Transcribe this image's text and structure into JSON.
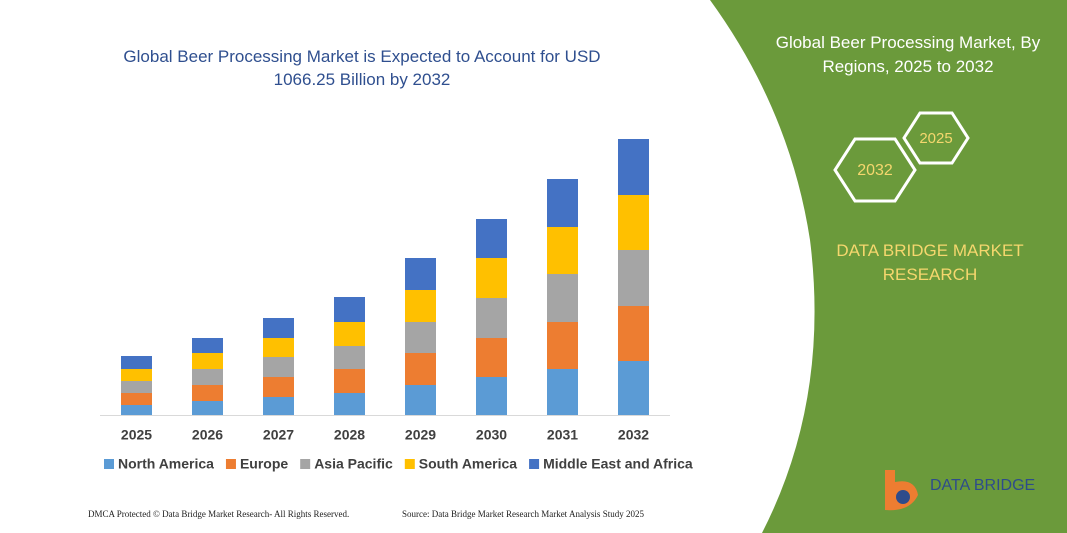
{
  "chart_data": {
    "type": "stacked_bar",
    "title": "Global Beer Processing Market is Expected to Account for USD 1066.25 Billion by 2032",
    "categories": [
      "2025",
      "2026",
      "2027",
      "2028",
      "2029",
      "2030",
      "2031",
      "2032"
    ],
    "series": [
      {
        "name": "North America",
        "color": "#5b9bd5",
        "values": [
          10,
          14,
          18,
          22,
          30,
          38,
          46,
          54
        ]
      },
      {
        "name": "Europe",
        "color": "#ed7d31",
        "values": [
          12,
          16,
          20,
          24,
          32,
          39,
          47,
          55
        ]
      },
      {
        "name": "Asia Pacific",
        "color": "#a5a5a5",
        "values": [
          12,
          16,
          20,
          23,
          31,
          40,
          48,
          56
        ]
      },
      {
        "name": "South America",
        "color": "#ffc000",
        "values": [
          12,
          16,
          19,
          24,
          32,
          40,
          47,
          55
        ]
      },
      {
        "name": "Middle East and Africa",
        "color": "#4472c4",
        "values": [
          13,
          15,
          20,
          25,
          32,
          39,
          48,
          56
        ]
      }
    ],
    "ylim": [
      0,
      280
    ],
    "legend": "bottom"
  },
  "panel": {
    "title": "Global Beer Processing Market, By Regions, 2025 to 2032",
    "hexagons": [
      "2032",
      "2025"
    ],
    "brand": "DATA BRIDGE MARKET RESEARCH"
  },
  "logo": "DATA BRIDGE",
  "footer": {
    "left": "DMCA Protected © Data Bridge Market Research- All Rights Reserved.",
    "right": "Source: Data Bridge Market Research Market Analysis Study 2025"
  }
}
